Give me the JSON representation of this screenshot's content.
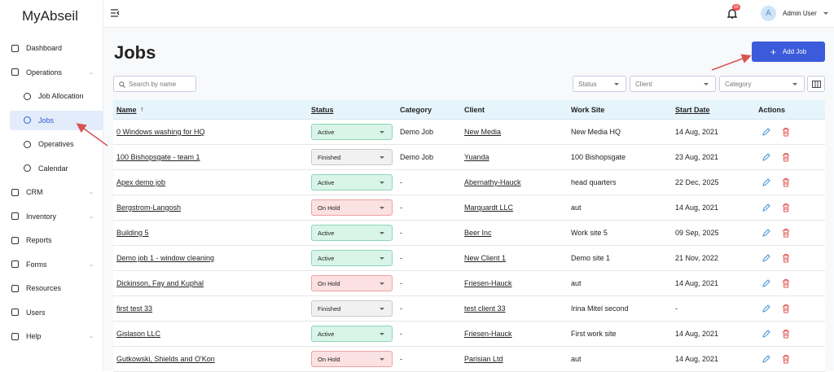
{
  "brand": "MyAbseil",
  "header": {
    "notifications": "10",
    "avatar": "A",
    "user": "Admin User"
  },
  "nav": [
    "Dashboard",
    "Operations",
    "Job Allocation",
    "Jobs",
    "Operatives",
    "Calendar",
    "CRM",
    "Inventory",
    "Reports",
    "Forms",
    "Resources",
    "Users",
    "Help"
  ],
  "page": {
    "title": "Jobs",
    "add_button": "Add Job",
    "search_placeholder": "Search by name",
    "filters": [
      "Status",
      "Client",
      "Category"
    ]
  },
  "table": {
    "columns": [
      "Name",
      "Status",
      "Category",
      "Client",
      "Work Site",
      "Start Date",
      "Actions"
    ],
    "rows": [
      {
        "name": "0 Windows washing for HQ",
        "status": "Active",
        "category": "Demo Job",
        "client": "New Media",
        "work_site": "New Media HQ",
        "start_date": "14 Aug, 2021"
      },
      {
        "name": "100 Bishopsgate - team 1",
        "status": "Finished",
        "category": "Demo Job",
        "client": "Yuanda",
        "work_site": "100 Bishopsgate",
        "start_date": "23 Aug, 2021"
      },
      {
        "name": "Apex demo job",
        "status": "Active",
        "category": "-",
        "client": "Abernathy-Hauck",
        "work_site": "head quarters",
        "start_date": "22 Dec, 2025"
      },
      {
        "name": "Bergstrom-Langosh",
        "status": "On Hold",
        "category": "-",
        "client": "Marquardt LLC",
        "work_site": "aut",
        "start_date": "14 Aug, 2021"
      },
      {
        "name": "Building 5",
        "status": "Active",
        "category": "-",
        "client": "Beer Inc",
        "work_site": "Work site 5",
        "start_date": "09 Sep, 2025"
      },
      {
        "name": "Demo job 1 - window cleaning",
        "status": "Active",
        "category": "-",
        "client": "New Client 1",
        "work_site": "Demo site 1",
        "start_date": "21 Nov, 2022"
      },
      {
        "name": "Dickinson, Fay and Kuphal",
        "status": "On Hold",
        "category": "-",
        "client": "Friesen-Hauck",
        "work_site": "aut",
        "start_date": "14 Aug, 2021"
      },
      {
        "name": "first test 33",
        "status": "Finished",
        "category": "-",
        "client": "test client 33",
        "work_site": "Irina Mitel second",
        "start_date": "-"
      },
      {
        "name": "Gislason LLC",
        "status": "Active",
        "category": "-",
        "client": "Friesen-Hauck",
        "work_site": "First work site",
        "start_date": "14 Aug, 2021"
      },
      {
        "name": "Gutkowski, Shields and O'Kon",
        "status": "On Hold",
        "category": "-",
        "client": "Parisian Ltd",
        "work_site": "aut",
        "start_date": "14 Aug, 2021"
      }
    ]
  }
}
